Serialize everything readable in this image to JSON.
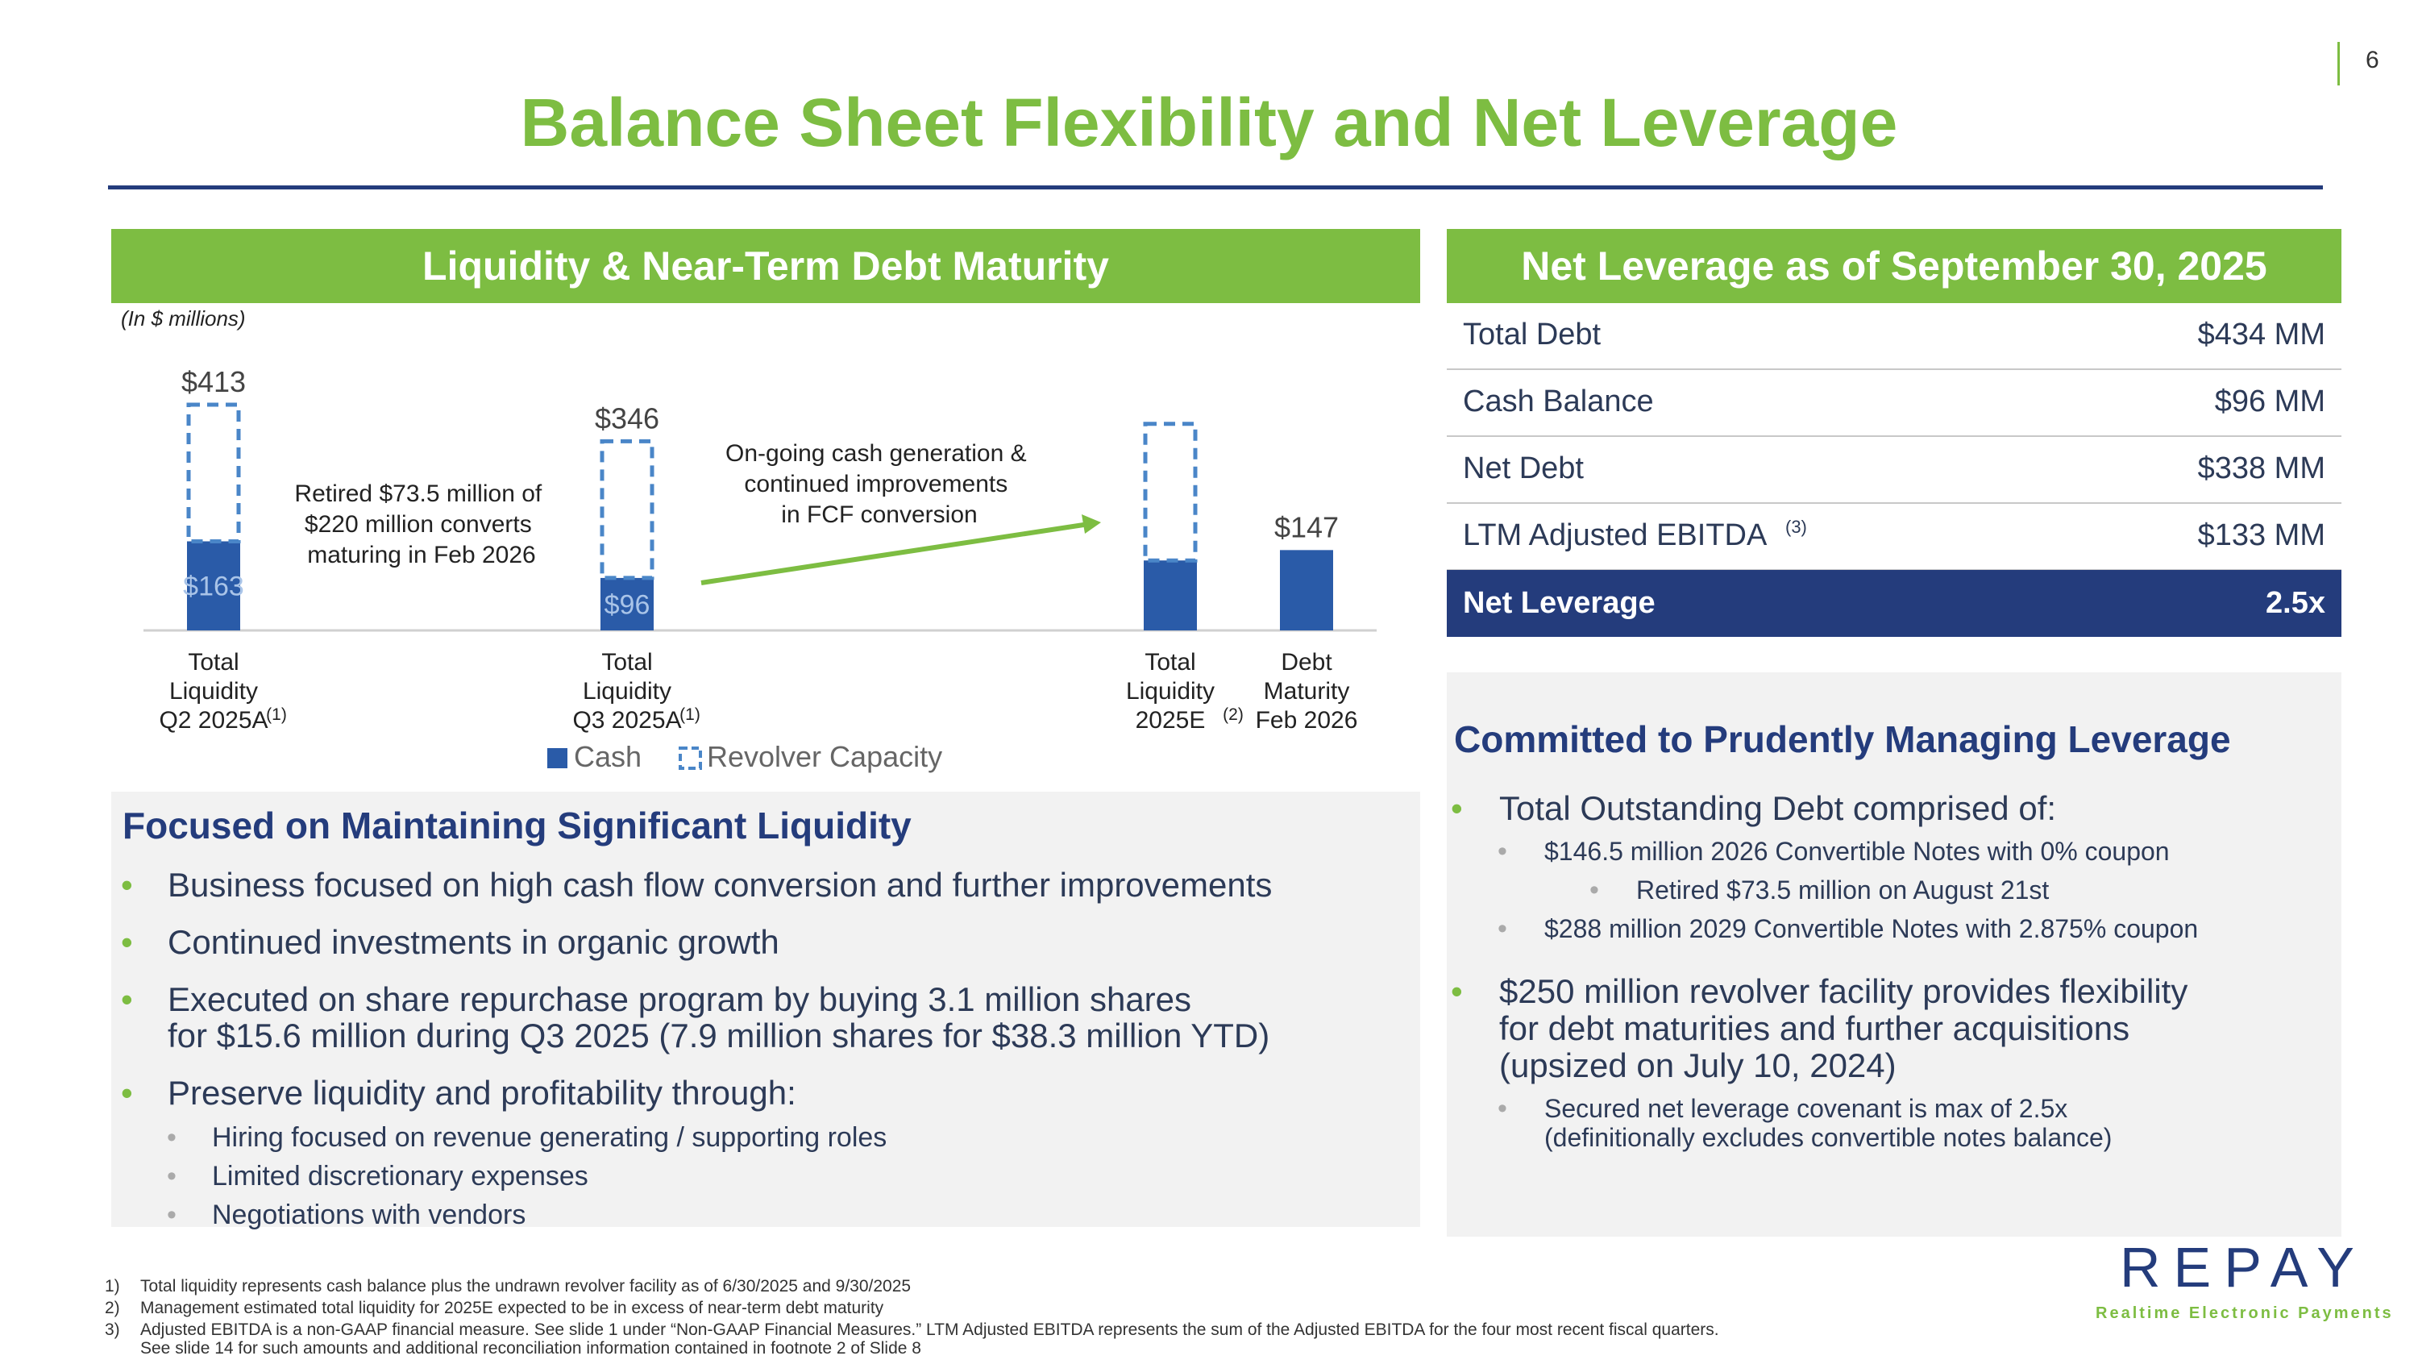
{
  "page_number": "6",
  "title": "Balance Sheet Flexibility and Net Leverage",
  "left_header": "Liquidity & Near-Term Debt Maturity",
  "right_header": "Net Leverage as of September 30, 2025",
  "units_note": "(In $ millions)",
  "chart_data": {
    "type": "bar",
    "title": "Liquidity & Near-Term Debt Maturity",
    "units": "$ millions",
    "categories": [
      {
        "lines": [
          "Total",
          "Liquidity",
          "Q2 2025A"
        ],
        "sup": "(1)"
      },
      {
        "lines": [
          "Total",
          "Liquidity",
          "Q3 2025A"
        ],
        "sup": "(1)"
      },
      {
        "lines": [
          "Total",
          "Liquidity",
          "2025E"
        ],
        "sup": "(2)"
      },
      {
        "lines": [
          "Debt",
          "Maturity",
          "Feb 2026"
        ],
        "sup": ""
      }
    ],
    "series": [
      {
        "name": "Cash",
        "color": "#2a5ba8",
        "values": [
          163,
          96,
          128,
          147
        ]
      },
      {
        "name": "Revolver Capacity",
        "color": "#4a86c8",
        "values": [
          250,
          250,
          250,
          0
        ]
      }
    ],
    "total_labels": [
      "$413",
      "$346",
      "",
      "$147"
    ],
    "cash_labels": [
      "$163",
      "$96",
      "",
      ""
    ],
    "legend": [
      "Cash",
      "Revolver Capacity"
    ],
    "ylim": [
      0,
      450
    ],
    "annotations": {
      "retired": [
        "Retired $73.5 million of",
        "$220 million converts",
        "maturing in Feb 2026"
      ],
      "ongoing": [
        "On-going cash generation &",
        "continued improvements",
        "in FCF conversion"
      ]
    }
  },
  "leverage_table": [
    {
      "label": "Total Debt",
      "sup": "",
      "value": "$434 MM"
    },
    {
      "label": "Cash Balance",
      "sup": "",
      "value": "$96 MM"
    },
    {
      "label": "Net Debt",
      "sup": "",
      "value": "$338 MM"
    },
    {
      "label": "LTM Adjusted EBITDA",
      "sup": "(3)",
      "value": "$133 MM"
    }
  ],
  "net_leverage": {
    "label": "Net Leverage",
    "value": "2.5x"
  },
  "left_panel": {
    "heading": "Focused on Maintaining Significant Liquidity",
    "bullets": [
      "Business focused on high cash flow conversion and further improvements",
      "Continued investments in organic growth",
      "Executed on share repurchase program by buying 3.1 million shares",
      "for $15.6 million during Q3 2025 (7.9 million shares for $38.3 million YTD)",
      "Preserve liquidity and profitability through:"
    ],
    "sub_bullets": [
      "Hiring focused on revenue generating / supporting roles",
      "Limited discretionary expenses",
      "Negotiations with vendors"
    ]
  },
  "right_panel": {
    "heading": "Committed to Prudently Managing Leverage",
    "bullet1": "Total Outstanding Debt comprised of:",
    "sub1": "$146.5 million 2026 Convertible Notes with 0% coupon",
    "subsub1": "Retired $73.5 million on August 21st",
    "sub2": "$288 million 2029 Convertible Notes with 2.875% coupon",
    "bullet2_lines": [
      "$250 million revolver facility provides flexibility",
      "for debt maturities and further acquisitions",
      "(upsized on July 10, 2024)"
    ],
    "sub3_lines": [
      "Secured net leverage covenant is max of 2.5x",
      "(definitionally excludes convertible notes balance)"
    ]
  },
  "footnotes": [
    {
      "num": "1)",
      "text": "Total liquidity represents cash balance plus the undrawn revolver facility as of 6/30/2025 and 9/30/2025"
    },
    {
      "num": "2)",
      "text": "Management estimated total liquidity for 2025E expected to be in excess of near-term debt maturity"
    },
    {
      "num": "3)",
      "text": "Adjusted EBITDA is a non-GAAP financial measure.  See slide 1 under “Non-GAAP Financial Measures.”  LTM Adjusted EBITDA represents the sum of the Adjusted EBITDA for the four most recent fiscal quarters."
    },
    {
      "num": "",
      "text": "See slide 14 for such amounts and additional reconciliation information contained in footnote 2 of Slide 8"
    }
  ],
  "logo": {
    "name": "REPAY",
    "tagline": "Realtime Electronic Payments"
  },
  "colors": {
    "green": "#7dbd42",
    "navy": "#243c7c",
    "cash_blue": "#2a5ba8"
  }
}
